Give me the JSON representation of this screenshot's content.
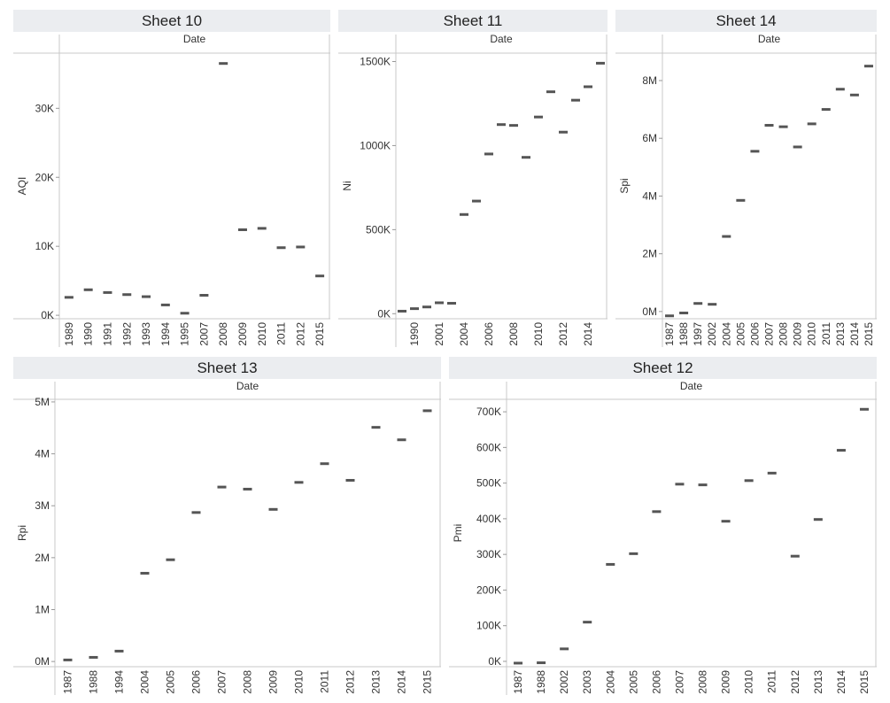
{
  "colors": {
    "mark": "#555555",
    "axis": "#c8c8c8",
    "header": "#ebedf0",
    "text": "#333333"
  },
  "chart_data": [
    {
      "id": "s10",
      "type": "scatter",
      "mark": "dash",
      "title": "Sheet 10",
      "xheader": "Date",
      "ylabel": "AQI",
      "categories": [
        "1989",
        "1990",
        "1991",
        "1992",
        "1993",
        "1994",
        "1995",
        "2007",
        "2008",
        "2009",
        "2010",
        "2011",
        "2012",
        "2015"
      ],
      "values": [
        2600,
        3700,
        3300,
        3000,
        2700,
        1500,
        300,
        2900,
        36500,
        12400,
        12600,
        9800,
        9900,
        5700
      ],
      "ylim": [
        -500,
        38000
      ],
      "yticks": [
        {
          "v": 0,
          "label": "0K"
        },
        {
          "v": 10000,
          "label": "10K"
        },
        {
          "v": 20000,
          "label": "20K"
        },
        {
          "v": 30000,
          "label": "30K"
        }
      ],
      "grid": false
    },
    {
      "id": "s11",
      "type": "scatter",
      "mark": "dash",
      "title": "Sheet 11",
      "xheader": "Date",
      "ylabel": "Ni",
      "categories": [
        "1989",
        "1990",
        "2000",
        "2001",
        "2002",
        "2004",
        "2005",
        "2006",
        "2007",
        "2008",
        "2009",
        "2010",
        "2011",
        "2012",
        "2013",
        "2014",
        "2015"
      ],
      "tick_labels": [
        "",
        "1990",
        "",
        "2001",
        "",
        "2004",
        "",
        "2006",
        "",
        "2008",
        "",
        "2010",
        "",
        "2012",
        "",
        "2014",
        ""
      ],
      "values": [
        15000,
        30000,
        40000,
        65000,
        62000,
        590000,
        670000,
        950000,
        1125000,
        1120000,
        930000,
        1170000,
        1320000,
        1080000,
        1270000,
        1350000,
        1490000
      ],
      "ylim": [
        -30000,
        1550000
      ],
      "yticks": [
        {
          "v": 0,
          "label": "0K"
        },
        {
          "v": 500000,
          "label": "500K"
        },
        {
          "v": 1000000,
          "label": "1000K"
        },
        {
          "v": 1500000,
          "label": "1500K"
        }
      ],
      "grid": false
    },
    {
      "id": "s14",
      "type": "scatter",
      "mark": "dash",
      "title": "Sheet 14",
      "xheader": "Date",
      "ylabel": "Spi",
      "categories": [
        "1987",
        "1988",
        "1997",
        "2002",
        "2004",
        "2005",
        "2006",
        "2007",
        "2008",
        "2009",
        "2010",
        "2011",
        "2013",
        "2014",
        "2015"
      ],
      "values": [
        -150000,
        -50000,
        280000,
        250000,
        2600000,
        3850000,
        5550000,
        6450000,
        6400000,
        5700000,
        6500000,
        7000000,
        7700000,
        7500000,
        8500000
      ],
      "ylim": [
        -250000,
        8950000
      ],
      "yticks": [
        {
          "v": 0,
          "label": "0M"
        },
        {
          "v": 2000000,
          "label": "2M"
        },
        {
          "v": 4000000,
          "label": "4M"
        },
        {
          "v": 6000000,
          "label": "6M"
        },
        {
          "v": 8000000,
          "label": "8M"
        }
      ],
      "grid": false
    },
    {
      "id": "s13",
      "type": "scatter",
      "mark": "dash",
      "title": "Sheet 13",
      "xheader": "Date",
      "ylabel": "Rpi",
      "categories": [
        "1987",
        "1988",
        "1994",
        "2004",
        "2005",
        "2006",
        "2007",
        "2008",
        "2009",
        "2010",
        "2011",
        "2012",
        "2013",
        "2014",
        "2015"
      ],
      "values": [
        30000,
        80000,
        200000,
        1700000,
        1960000,
        2870000,
        3360000,
        3320000,
        2930000,
        3450000,
        3810000,
        3490000,
        4510000,
        4270000,
        4830000
      ],
      "ylim": [
        -100000,
        5050000
      ],
      "yticks": [
        {
          "v": 0,
          "label": "0M"
        },
        {
          "v": 1000000,
          "label": "1M"
        },
        {
          "v": 2000000,
          "label": "2M"
        },
        {
          "v": 3000000,
          "label": "3M"
        },
        {
          "v": 4000000,
          "label": "4M"
        },
        {
          "v": 5000000,
          "label": "5M"
        }
      ],
      "grid": false
    },
    {
      "id": "s12",
      "type": "scatter",
      "mark": "dash",
      "title": "Sheet 12",
      "xheader": "Date",
      "ylabel": "Pmi",
      "categories": [
        "1987",
        "1988",
        "2002",
        "2003",
        "2004",
        "2005",
        "2006",
        "2007",
        "2008",
        "2009",
        "2010",
        "2011",
        "2012",
        "2013",
        "2014",
        "2015"
      ],
      "values": [
        -5000,
        -4000,
        35000,
        110000,
        272000,
        302000,
        420000,
        497000,
        495000,
        393000,
        507000,
        528000,
        295000,
        398000,
        592000,
        707000
      ],
      "ylim": [
        -15000,
        735000
      ],
      "yticks": [
        {
          "v": 0,
          "label": "0K"
        },
        {
          "v": 100000,
          "label": "100K"
        },
        {
          "v": 200000,
          "label": "200K"
        },
        {
          "v": 300000,
          "label": "300K"
        },
        {
          "v": 400000,
          "label": "400K"
        },
        {
          "v": 500000,
          "label": "500K"
        },
        {
          "v": 600000,
          "label": "600K"
        },
        {
          "v": 700000,
          "label": "700K"
        }
      ],
      "grid": false
    }
  ]
}
